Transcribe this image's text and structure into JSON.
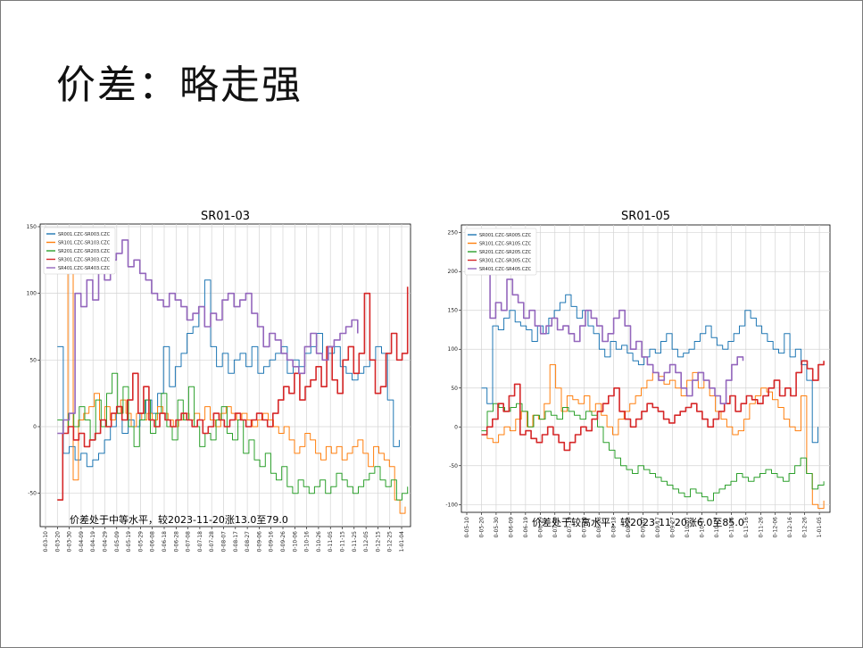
{
  "slide": {
    "title": "价差：略走强"
  },
  "colors": {
    "SR001": "#1f77b4",
    "SR101": "#ff7f0e",
    "SR201": "#2ca02c",
    "SR301": "#d62728",
    "SR401": "#9467bd"
  },
  "chart_data": [
    {
      "type": "line",
      "title": "SR01-03",
      "ylim": [
        -75,
        152
      ],
      "yticks": [
        -50,
        0,
        50,
        100,
        150
      ],
      "grid": true,
      "legend_position": "top-left",
      "x_tick_labels": [
        "0-03-10",
        "0-03-20",
        "0-03-30",
        "0-04-09",
        "0-04-19",
        "0-04-29",
        "0-05-09",
        "0-05-19",
        "0-05-29",
        "0-06-08",
        "0-06-18",
        "0-06-28",
        "0-07-08",
        "0-07-18",
        "0-07-28",
        "0-08-07",
        "0-08-17",
        "0-08-27",
        "0-09-06",
        "0-09-16",
        "0-09-26",
        "0-10-06",
        "0-10-16",
        "0-10-26",
        "0-11-05",
        "0-11-15",
        "0-11-25",
        "0-12-05",
        "0-12-15",
        "0-12-25",
        "1-01-04"
      ],
      "annotation": "价差处于中等水平，较2023-11-20涨13.0至79.0",
      "series": [
        {
          "name": "SR001.CZC-SR003.CZC",
          "color_key": "SR001",
          "start": 1,
          "end": 29.8,
          "values": [
            60,
            -20,
            -15,
            -25,
            -20,
            -30,
            -25,
            -20,
            -10,
            0,
            10,
            -5,
            5,
            0,
            10,
            20,
            10,
            25,
            60,
            30,
            45,
            55,
            70,
            75,
            90,
            110,
            60,
            45,
            55,
            40,
            50,
            55,
            45,
            60,
            40,
            45,
            50,
            55,
            60,
            40,
            50,
            45,
            55,
            60,
            70,
            50,
            55,
            60,
            45,
            40,
            35,
            40,
            45,
            50,
            60,
            55,
            20,
            -15,
            -10
          ]
        },
        {
          "name": "SR101.CZC-SR103.CZC",
          "color_key": "SR101",
          "start": 1,
          "end": 30.3,
          "values": [
            -55,
            -5,
            120,
            -40,
            5,
            10,
            15,
            25,
            5,
            15,
            5,
            10,
            20,
            10,
            0,
            10,
            5,
            10,
            5,
            15,
            10,
            5,
            0,
            5,
            10,
            5,
            10,
            5,
            15,
            5,
            0,
            10,
            15,
            10,
            5,
            10,
            5,
            0,
            5,
            10,
            5,
            0,
            -5,
            0,
            -10,
            -20,
            -15,
            -5,
            -10,
            -20,
            -25,
            -15,
            -20,
            -15,
            -25,
            -20,
            -15,
            -10,
            -20,
            -30,
            -15,
            -20,
            -25,
            -30,
            -55,
            -65,
            -60
          ]
        },
        {
          "name": "SR201.CZC-SR203.CZC",
          "color_key": "SR201",
          "start": 1,
          "end": 30.5,
          "values": [
            5,
            -5,
            10,
            0,
            15,
            5,
            -10,
            20,
            0,
            25,
            40,
            10,
            30,
            0,
            -15,
            5,
            20,
            -5,
            10,
            25,
            0,
            -10,
            20,
            5,
            30,
            0,
            -15,
            -5,
            -10,
            5,
            15,
            -5,
            -10,
            5,
            -20,
            -10,
            -25,
            -30,
            -20,
            -35,
            -40,
            -30,
            -45,
            -50,
            -40,
            -45,
            -50,
            -45,
            -40,
            -50,
            -45,
            -35,
            -40,
            -45,
            -50,
            -45,
            -40,
            -35,
            -30,
            -40,
            -45,
            -40,
            -55,
            -50,
            -45
          ]
        },
        {
          "name": "SR301.CZC-SR303.CZC",
          "color_key": "SR301",
          "start": 1,
          "end": 30.5,
          "values": [
            -55,
            -5,
            0,
            -10,
            -5,
            -15,
            -10,
            -5,
            5,
            0,
            10,
            15,
            5,
            20,
            40,
            10,
            30,
            5,
            0,
            10,
            5,
            0,
            5,
            10,
            5,
            0,
            5,
            -5,
            0,
            10,
            5,
            0,
            5,
            10,
            5,
            0,
            5,
            10,
            5,
            0,
            10,
            20,
            30,
            25,
            40,
            20,
            30,
            35,
            45,
            30,
            60,
            35,
            25,
            50,
            60,
            40,
            55,
            100,
            50,
            25,
            30,
            55,
            70,
            50,
            55,
            105
          ]
        },
        {
          "name": "SR401.CZC-SR403.CZC",
          "color_key": "SR401",
          "start": 1,
          "end": 26.3,
          "values": [
            -5,
            5,
            10,
            100,
            90,
            110,
            95,
            120,
            110,
            125,
            130,
            140,
            120,
            125,
            115,
            110,
            100,
            95,
            90,
            100,
            95,
            90,
            80,
            85,
            90,
            75,
            85,
            80,
            95,
            100,
            90,
            95,
            100,
            85,
            75,
            60,
            70,
            65,
            55,
            50,
            45,
            40,
            60,
            70,
            55,
            50,
            60,
            65,
            70,
            75,
            80,
            70
          ]
        }
      ]
    },
    {
      "type": "line",
      "title": "SR01-05",
      "ylim": [
        -110,
        260
      ],
      "yticks": [
        -100,
        -50,
        0,
        50,
        100,
        150,
        200,
        250
      ],
      "grid": true,
      "legend_position": "top-left",
      "x_tick_labels": [
        "0-05-10",
        "0-05-20",
        "0-05-30",
        "0-06-09",
        "0-06-19",
        "0-06-29",
        "0-07-09",
        "0-07-19",
        "0-07-29",
        "0-08-08",
        "0-08-18",
        "0-08-28",
        "0-09-07",
        "0-09-17",
        "0-09-27",
        "0-10-07",
        "0-10-17",
        "0-10-27",
        "0-11-06",
        "0-11-16",
        "0-11-26",
        "0-12-06",
        "0-12-16",
        "0-12-26",
        "1-01-05"
      ],
      "annotation": "价差处于较高水平，较2023-11-20涨6.0至85.0",
      "series": [
        {
          "name": "SR001.CZC-SR005.CZC",
          "color_key": "SR001",
          "start": 1,
          "end": 23.9,
          "values": [
            50,
            30,
            130,
            125,
            140,
            150,
            135,
            130,
            125,
            110,
            130,
            120,
            140,
            150,
            160,
            170,
            155,
            140,
            150,
            130,
            120,
            100,
            90,
            110,
            100,
            105,
            95,
            85,
            80,
            90,
            100,
            95,
            110,
            120,
            100,
            90,
            95,
            100,
            110,
            120,
            130,
            115,
            105,
            100,
            110,
            120,
            130,
            150,
            140,
            130,
            120,
            110,
            100,
            95,
            120,
            90,
            100,
            80,
            60,
            -20,
            0
          ]
        },
        {
          "name": "SR101.CZC-SR105.CZC",
          "color_key": "SR101",
          "start": 1,
          "end": 24.3,
          "values": [
            -10,
            -15,
            -20,
            -10,
            0,
            -5,
            10,
            20,
            0,
            15,
            10,
            30,
            80,
            50,
            20,
            40,
            35,
            30,
            40,
            20,
            30,
            15,
            0,
            -10,
            10,
            20,
            30,
            40,
            50,
            60,
            70,
            65,
            55,
            60,
            50,
            40,
            60,
            70,
            50,
            60,
            40,
            20,
            10,
            0,
            -10,
            -5,
            10,
            30,
            40,
            50,
            45,
            35,
            25,
            10,
            0,
            -5,
            40,
            -60,
            -100,
            -105,
            -95
          ]
        },
        {
          "name": "SR201.CZC-SR205.CZC",
          "color_key": "SR201",
          "start": 1,
          "end": 24.3,
          "values": [
            -5,
            20,
            30,
            25,
            20,
            25,
            30,
            20,
            0,
            15,
            10,
            20,
            15,
            10,
            25,
            20,
            15,
            10,
            20,
            15,
            0,
            -20,
            -30,
            -40,
            -50,
            -55,
            -60,
            -50,
            -55,
            -60,
            -65,
            -70,
            -75,
            -80,
            -85,
            -90,
            -80,
            -85,
            -90,
            -95,
            -85,
            -80,
            -75,
            -70,
            -60,
            -65,
            -70,
            -65,
            -60,
            -55,
            -60,
            -65,
            -70,
            -60,
            -50,
            -40,
            -60,
            -80,
            -75,
            -70
          ]
        },
        {
          "name": "SR301.CZC-SR305.CZC",
          "color_key": "SR301",
          "start": 1,
          "end": 24.3,
          "values": [
            -10,
            0,
            10,
            30,
            20,
            40,
            55,
            -10,
            -5,
            -15,
            -20,
            -10,
            0,
            -10,
            -20,
            -30,
            -20,
            -10,
            0,
            -5,
            10,
            20,
            30,
            40,
            50,
            20,
            10,
            0,
            10,
            20,
            30,
            25,
            20,
            10,
            5,
            15,
            20,
            25,
            30,
            20,
            10,
            0,
            10,
            20,
            30,
            40,
            20,
            30,
            40,
            35,
            30,
            40,
            50,
            60,
            40,
            50,
            40,
            70,
            85,
            75,
            60,
            80,
            85
          ]
        },
        {
          "name": "SR401.CZC-SR405.CZC",
          "color_key": "SR401",
          "start": 1.2,
          "end": 18.8,
          "values": [
            200,
            140,
            160,
            150,
            190,
            170,
            160,
            140,
            150,
            130,
            120,
            130,
            140,
            125,
            130,
            120,
            110,
            130,
            150,
            140,
            130,
            110,
            120,
            140,
            150,
            130,
            100,
            110,
            90,
            80,
            70,
            60,
            70,
            80,
            70,
            50,
            40,
            60,
            70,
            60,
            50,
            40,
            30,
            60,
            80,
            90,
            85
          ]
        }
      ]
    }
  ]
}
